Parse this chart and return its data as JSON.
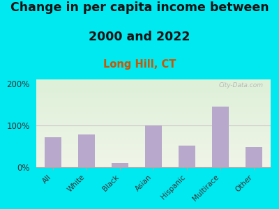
{
  "title_line1": "Change in per capita income between",
  "title_line2": "2000 and 2022",
  "subtitle": "Long Hill, CT",
  "categories": [
    "All",
    "White",
    "Black",
    "Asian",
    "Hispanic",
    "Multirace",
    "Other"
  ],
  "values": [
    72,
    78,
    10,
    100,
    52,
    145,
    48
  ],
  "bar_color": "#b8a8cc",
  "background_outer": "#00e8f0",
  "background_inner_top": "#ddf0d8",
  "background_inner_bottom": "#f0f5e8",
  "title_fontsize": 12.5,
  "subtitle_fontsize": 10.5,
  "subtitle_color": "#cc5500",
  "ylim": [
    0,
    210
  ],
  "yticks": [
    0,
    100,
    200
  ],
  "ytick_labels": [
    "0%",
    "100%",
    "200%"
  ],
  "watermark": "City-Data.com",
  "grid_color": "#cccccc"
}
